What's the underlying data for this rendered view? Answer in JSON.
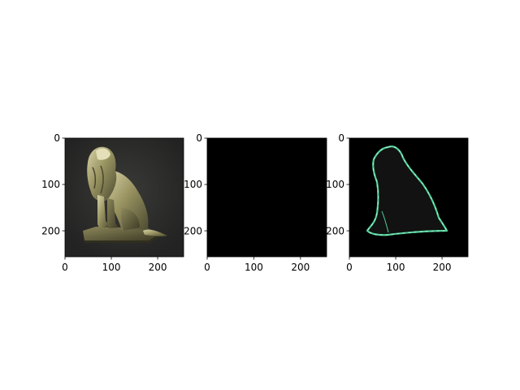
{
  "figure": {
    "background": "#ffffff"
  },
  "chart_data": [
    {
      "type": "image",
      "content": "lion-statue-photo",
      "title": "",
      "xlabel": "",
      "ylabel": "",
      "xlim": [
        0,
        256
      ],
      "ylim": [
        256,
        0
      ],
      "x_ticks": [
        0,
        100,
        200
      ],
      "y_ticks": [
        0,
        100,
        200
      ],
      "x_tick_labels": [
        "0",
        "100",
        "200"
      ],
      "y_tick_labels": [
        "0",
        "100",
        "200"
      ],
      "background_color": "#2b2b2b"
    },
    {
      "type": "image",
      "content": "black-mask",
      "title": "",
      "xlabel": "",
      "ylabel": "",
      "xlim": [
        0,
        256
      ],
      "ylim": [
        256,
        0
      ],
      "x_ticks": [
        0,
        100,
        200
      ],
      "y_ticks": [
        0,
        100,
        200
      ],
      "x_tick_labels": [
        "0",
        "100",
        "200"
      ],
      "y_tick_labels": [
        "0",
        "100",
        "200"
      ],
      "background_color": "#000000"
    },
    {
      "type": "image",
      "content": "lion-silhouette-edge-outline",
      "title": "",
      "xlabel": "",
      "ylabel": "",
      "xlim": [
        0,
        256
      ],
      "ylim": [
        256,
        0
      ],
      "x_ticks": [
        0,
        100,
        200
      ],
      "y_ticks": [
        0,
        100,
        200
      ],
      "x_tick_labels": [
        "0",
        "100",
        "200"
      ],
      "y_tick_labels": [
        "0",
        "100",
        "200"
      ],
      "background_color": "#000000",
      "outline_color": "#4fd39a",
      "fill_color": "#121212"
    }
  ]
}
